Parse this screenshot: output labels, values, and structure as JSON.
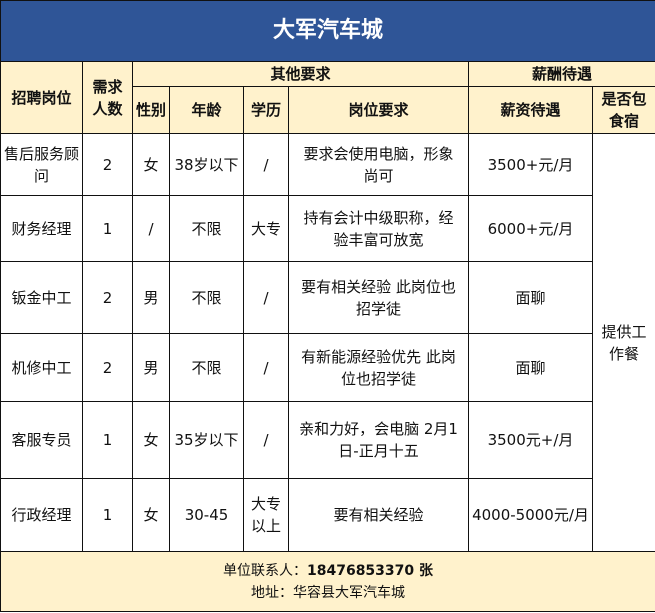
{
  "title": "大军汽车城",
  "headers": {
    "position": "招聘岗位",
    "count": "需求人数",
    "other": "其他要求",
    "salary_group": "薪酬待遇",
    "gender": "性别",
    "age": "年龄",
    "education": "学历",
    "requirement": "岗位要求",
    "salary": "薪资待遇",
    "board": "是否包食宿"
  },
  "rows": [
    {
      "position": "售后服务顾问",
      "count": "2",
      "gender": "女",
      "age": "38岁以下",
      "education": "/",
      "requirement": "要求会使用电脑，形象尚可",
      "salary": "3500+元/月"
    },
    {
      "position": "财务经理",
      "count": "1",
      "gender": "/",
      "age": "不限",
      "education": "大专",
      "requirement": "持有会计中级职称，经验丰富可放宽",
      "salary": "6000+元/月"
    },
    {
      "position": "钣金中工",
      "count": "2",
      "gender": "男",
      "age": "不限",
      "education": "/",
      "requirement": "要有相关经验 此岗位也招学徒",
      "salary": "面聊"
    },
    {
      "position": "机修中工",
      "count": "2",
      "gender": "男",
      "age": "不限",
      "education": "/",
      "requirement": "有新能源经验优先 此岗位也招学徒",
      "salary": "面聊"
    },
    {
      "position": "客服专员",
      "count": "1",
      "gender": "女",
      "age": "35岁以下",
      "education": "/",
      "requirement": "亲和力好，会电脑 2月1日-正月十五",
      "salary": "3500元+/月"
    },
    {
      "position": "行政经理",
      "count": "1",
      "gender": "女",
      "age": "30-45",
      "education": "大专以上",
      "requirement": "要有相关经验",
      "salary": "4000-5000元/月"
    }
  ],
  "board_value": "提供工作餐",
  "footer": {
    "contact_label": "单位联系人：",
    "contact_value": "18476853370 张",
    "address_label": "地址：",
    "address_value": "华容县大军汽车城"
  },
  "colors": {
    "title_bg": "#2f5597",
    "header_bg": "#fff2cc"
  }
}
